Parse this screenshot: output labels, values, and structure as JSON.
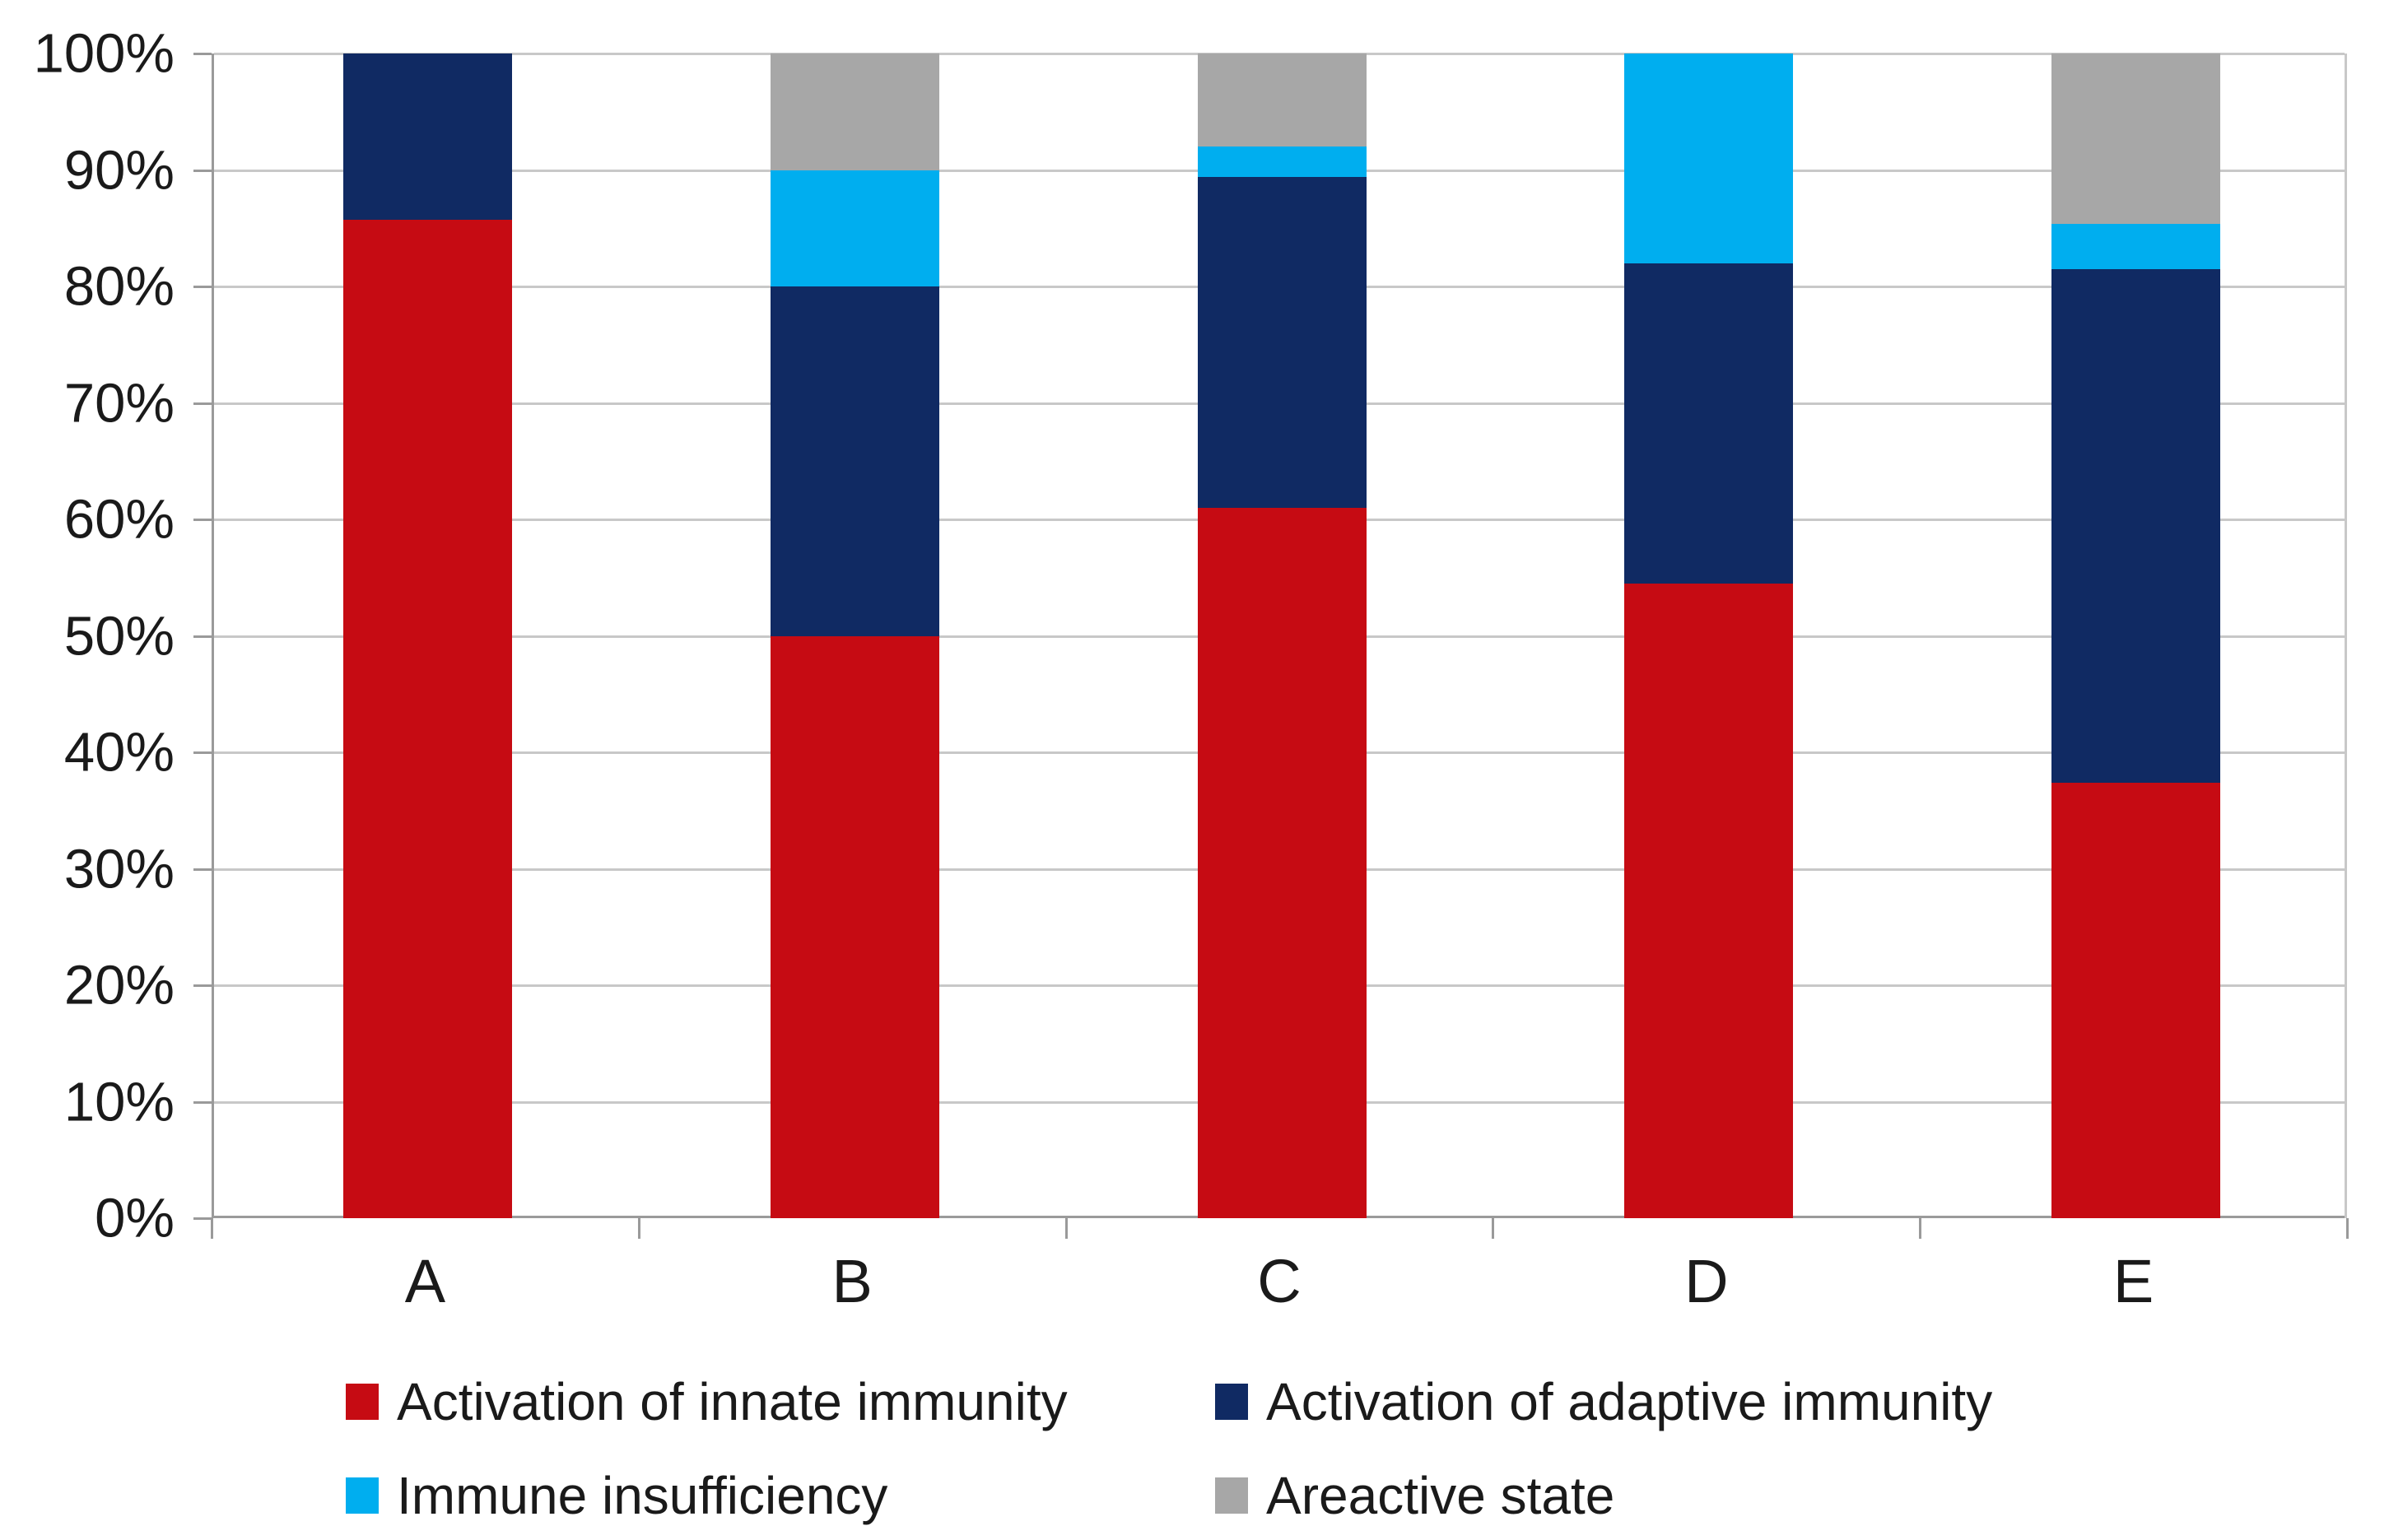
{
  "chart_data": {
    "type": "bar",
    "subtype": "stacked-100-percent-column",
    "title": "",
    "xlabel": "",
    "ylabel": "",
    "categories": [
      "A",
      "B",
      "C",
      "D",
      "E"
    ],
    "series": [
      {
        "name": "Activation of innate immunity",
        "color": "#c60b13",
        "values": [
          85.7,
          50,
          61,
          54.5,
          37.4
        ]
      },
      {
        "name": "Activation of adaptive immunity",
        "color": "#102a63",
        "values": [
          14.3,
          30,
          28.4,
          27.5,
          44.1
        ]
      },
      {
        "name": "Immune insufficiency",
        "color": "#00aeef",
        "values": [
          0,
          10,
          2.6,
          18,
          3.9
        ]
      },
      {
        "name": "Areactive state",
        "color": "#a7a7a7",
        "values": [
          0,
          10,
          8,
          0,
          14.6
        ]
      }
    ],
    "y_axis": {
      "min": 0,
      "max": 100,
      "tick_labels": [
        "0%",
        "10%",
        "20%",
        "30%",
        "40%",
        "50%",
        "60%",
        "70%",
        "80%",
        "90%",
        "100%"
      ]
    },
    "grid": true,
    "legend_position": "bottom"
  },
  "colors": {
    "background": "#ffffff",
    "gridline": "#c8c8c8",
    "axis": "#9a9a9a",
    "text": "#1a1a1a"
  }
}
